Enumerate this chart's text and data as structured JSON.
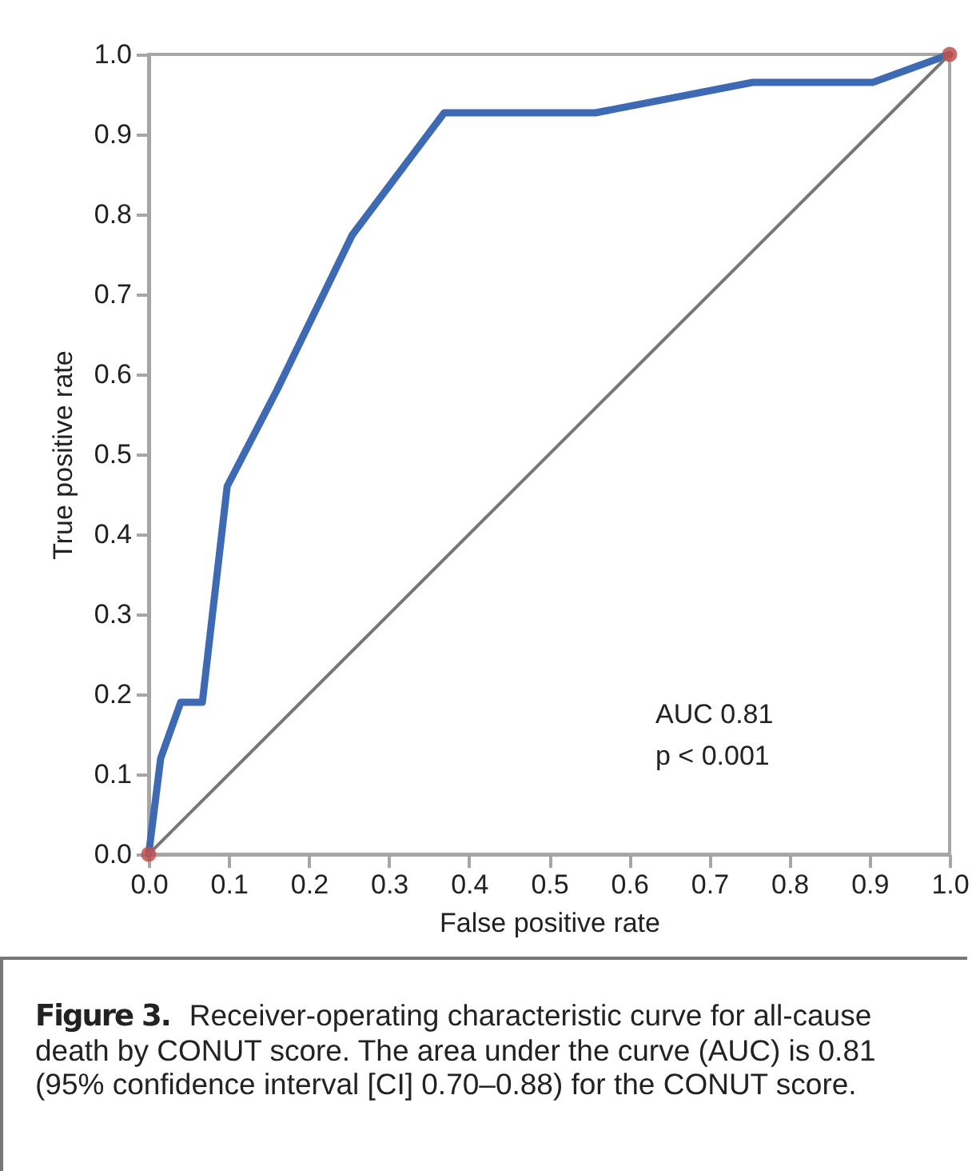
{
  "chart_data": {
    "type": "line",
    "xlabel": "False positive rate",
    "ylabel": "True positive rate",
    "xlim": [
      0,
      1
    ],
    "ylim": [
      0,
      1
    ],
    "xticks": [
      {
        "value": 0,
        "label": "0.0"
      },
      0.1,
      0.2,
      0.3,
      0.4,
      0.5,
      0.6,
      0.7,
      0.8,
      0.9,
      {
        "value": 1,
        "label": "1.0"
      }
    ],
    "yticks": [
      {
        "value": 0,
        "label": "0.0"
      },
      0.1,
      0.2,
      0.3,
      0.4,
      0.5,
      0.6,
      0.7,
      0.8,
      0.9,
      {
        "value": 1,
        "label": "1.0"
      }
    ],
    "grid": false,
    "series": [
      {
        "color": "#3e6ab4",
        "x": [
          0,
          0.015,
          0.04,
          0.067,
          0.098,
          0.16,
          0.254,
          0.369,
          0.558,
          0.754,
          0.904,
          1
        ],
        "values": [
          0,
          0.12,
          0.19,
          0.19,
          0.46,
          0.58,
          0.774,
          0.927,
          0.927,
          0.965,
          0.965,
          1
        ],
        "marker": "none"
      },
      {
        "color": "#777777",
        "x": [
          0,
          1
        ],
        "values": [
          0,
          1
        ],
        "marker": "none"
      },
      {
        "type": "scatter",
        "color": "#c0504d",
        "x": [
          0,
          1
        ],
        "values": [
          0,
          1
        ],
        "marker": "circle"
      }
    ],
    "annotations": [
      "AUC 0.81",
      "p < 0.001",
      "Figure 3.",
      "Receiver-operating characteristic curve for all-cause death by CONUT score. The area under the curve (AUC) is 0.81 (95% confidence interval [CI] 0.70–0.88) for the CONUT score."
    ]
  }
}
